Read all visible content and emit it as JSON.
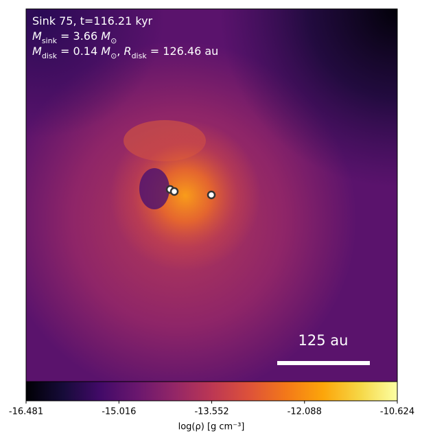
{
  "chart_data": {
    "type": "density-map",
    "annotations": [
      [
        {
          "text": "Sink 75, t=116.21 kyr"
        }
      ],
      [
        {
          "text": "M"
        },
        {
          "text": "sink",
          "sub": true
        },
        {
          "text": " = 3.66 "
        },
        {
          "text": "M"
        },
        {
          "text": "⊙",
          "sub": true
        }
      ],
      [
        {
          "text": "M"
        },
        {
          "text": "disk",
          "sub": true
        },
        {
          "text": " = 0.14 "
        },
        {
          "text": "M"
        },
        {
          "text": "⊙",
          "sub": true
        },
        {
          "text": ", "
        },
        {
          "text": "R"
        },
        {
          "text": "disk",
          "sub": true
        },
        {
          "text": " = 126.46 au"
        }
      ]
    ],
    "scale_bar_label": "125 au",
    "colorbar_label": "log(ρ) [g cm⁻³]",
    "colormap": "inferno",
    "clim": [
      -16.481,
      -10.624
    ],
    "cticks": [
      -16.481,
      -15.016,
      -13.552,
      -12.088,
      -10.624
    ]
  }
}
